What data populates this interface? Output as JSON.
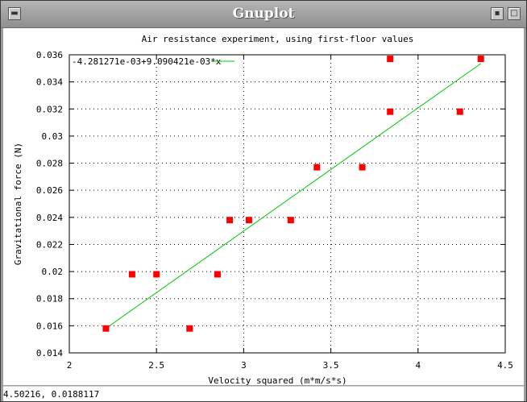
{
  "window": {
    "title": "Gnuplot"
  },
  "status_bar": {
    "coords": "4.50216,  0.0188117"
  },
  "colors": {
    "fit_line": "#00c800",
    "points": "#ff0000",
    "grid": "#000000"
  },
  "icons": {
    "menu": "window-menu-icon",
    "minimize": "minimize-icon",
    "maximize": "maximize-icon"
  },
  "chart_data": {
    "type": "scatter",
    "title": "Air resistance experiment, using first-floor values",
    "xlabel": "Velocity squared (m*m/s*s)",
    "ylabel": "Gravitational force (N)",
    "xlim": [
      2,
      4.5
    ],
    "ylim": [
      0.014,
      0.036
    ],
    "grid": true,
    "legend_position": "top-left",
    "x_ticks": [
      "2",
      "2.5",
      "3",
      "3.5",
      "4",
      "4.5"
    ],
    "y_ticks": [
      "0.014",
      "0.016",
      "0.018",
      "0.02",
      "0.022",
      "0.024",
      "0.026",
      "0.028",
      "0.03",
      "0.032",
      "0.034",
      "0.036"
    ],
    "series": [
      {
        "name": "-4.281271e-03+9.090421e-03*x",
        "kind": "line",
        "intercept": -0.004281271,
        "slope": 0.009090421,
        "x_range": [
          2.21,
          4.36
        ]
      },
      {
        "kind": "points",
        "points": [
          [
            2.21,
            0.0158
          ],
          [
            2.69,
            0.0158
          ],
          [
            2.36,
            0.0198
          ],
          [
            2.5,
            0.0198
          ],
          [
            2.85,
            0.0198
          ],
          [
            2.92,
            0.0238
          ],
          [
            3.03,
            0.0238
          ],
          [
            3.27,
            0.0238
          ],
          [
            3.42,
            0.0277
          ],
          [
            3.68,
            0.0277
          ],
          [
            3.84,
            0.0318
          ],
          [
            4.24,
            0.0318
          ],
          [
            3.84,
            0.0357
          ],
          [
            4.36,
            0.0357
          ]
        ]
      }
    ]
  }
}
